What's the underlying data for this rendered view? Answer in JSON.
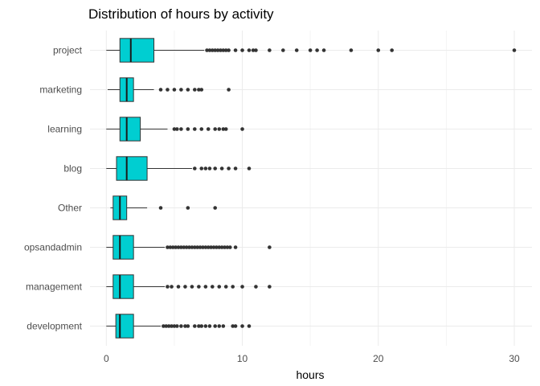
{
  "chart_data": {
    "type": "boxplot",
    "orientation": "horizontal",
    "title": "Distribution of hours by activity",
    "xlabel": "hours",
    "ylabel": "",
    "xlim": [
      -1.2,
      31.3
    ],
    "xticks": [
      0,
      10,
      20,
      30
    ],
    "grid": true,
    "legend": "none",
    "colors": {
      "fill": "#00CED1",
      "stroke": "#333333",
      "median": "#1a1a1a",
      "grid": "#ebebeb",
      "outlier": "#333333"
    },
    "categories": [
      "project",
      "marketing",
      "learning",
      "blog",
      "Other",
      "opsandadmin",
      "management",
      "development"
    ],
    "boxes": [
      {
        "category": "project",
        "whisker_low": 0.0,
        "q1": 1.0,
        "median": 1.8,
        "q3": 3.5,
        "whisker_high": 7.2,
        "outliers": [
          7.4,
          7.6,
          7.8,
          8.0,
          8.2,
          8.4,
          8.6,
          8.8,
          9.0,
          9.5,
          10.0,
          10.5,
          10.8,
          11.0,
          12.0,
          13.0,
          14.0,
          15.0,
          15.5,
          16.0,
          18.0,
          20.0,
          21.0,
          30.0
        ]
      },
      {
        "category": "marketing",
        "whisker_low": 0.1,
        "q1": 1.0,
        "median": 1.5,
        "q3": 2.0,
        "whisker_high": 3.5,
        "outliers": [
          4.0,
          4.5,
          5.0,
          5.5,
          6.0,
          6.5,
          6.8,
          7.0,
          9.0
        ]
      },
      {
        "category": "learning",
        "whisker_low": 0.0,
        "q1": 1.0,
        "median": 1.5,
        "q3": 2.5,
        "whisker_high": 4.5,
        "outliers": [
          5.0,
          5.2,
          5.5,
          6.0,
          6.5,
          7.0,
          7.5,
          8.0,
          8.3,
          8.6,
          8.8,
          10.0
        ]
      },
      {
        "category": "blog",
        "whisker_low": 0.0,
        "q1": 0.75,
        "median": 1.5,
        "q3": 3.0,
        "whisker_high": 6.3,
        "outliers": [
          6.5,
          7.0,
          7.3,
          7.6,
          8.0,
          8.5,
          9.0,
          9.5,
          10.5
        ]
      },
      {
        "category": "Other",
        "whisker_low": 0.3,
        "q1": 0.5,
        "median": 1.0,
        "q3": 1.5,
        "whisker_high": 3.0,
        "outliers": [
          4.0,
          6.0,
          8.0
        ]
      },
      {
        "category": "opsandadmin",
        "whisker_low": 0.0,
        "q1": 0.5,
        "median": 1.0,
        "q3": 2.0,
        "whisker_high": 4.3,
        "outliers": [
          4.5,
          4.7,
          4.9,
          5.1,
          5.3,
          5.5,
          5.7,
          5.9,
          6.1,
          6.3,
          6.5,
          6.7,
          6.9,
          7.1,
          7.3,
          7.5,
          7.7,
          7.9,
          8.1,
          8.3,
          8.5,
          8.7,
          8.9,
          9.1,
          9.5,
          12.0
        ]
      },
      {
        "category": "management",
        "whisker_low": 0.0,
        "q1": 0.5,
        "median": 1.0,
        "q3": 2.0,
        "whisker_high": 4.3,
        "outliers": [
          4.5,
          4.8,
          5.3,
          5.8,
          6.3,
          6.8,
          7.3,
          7.8,
          8.3,
          8.8,
          9.3,
          10.0,
          11.0,
          12.0
        ]
      },
      {
        "category": "development",
        "whisker_low": 0.0,
        "q1": 0.7,
        "median": 1.0,
        "q3": 2.0,
        "whisker_high": 4.0,
        "outliers": [
          4.2,
          4.4,
          4.6,
          4.8,
          5.0,
          5.2,
          5.5,
          5.8,
          6.0,
          6.5,
          6.8,
          7.0,
          7.3,
          7.6,
          8.0,
          8.3,
          8.6,
          9.3,
          9.5,
          10.0,
          10.5
        ]
      }
    ]
  }
}
